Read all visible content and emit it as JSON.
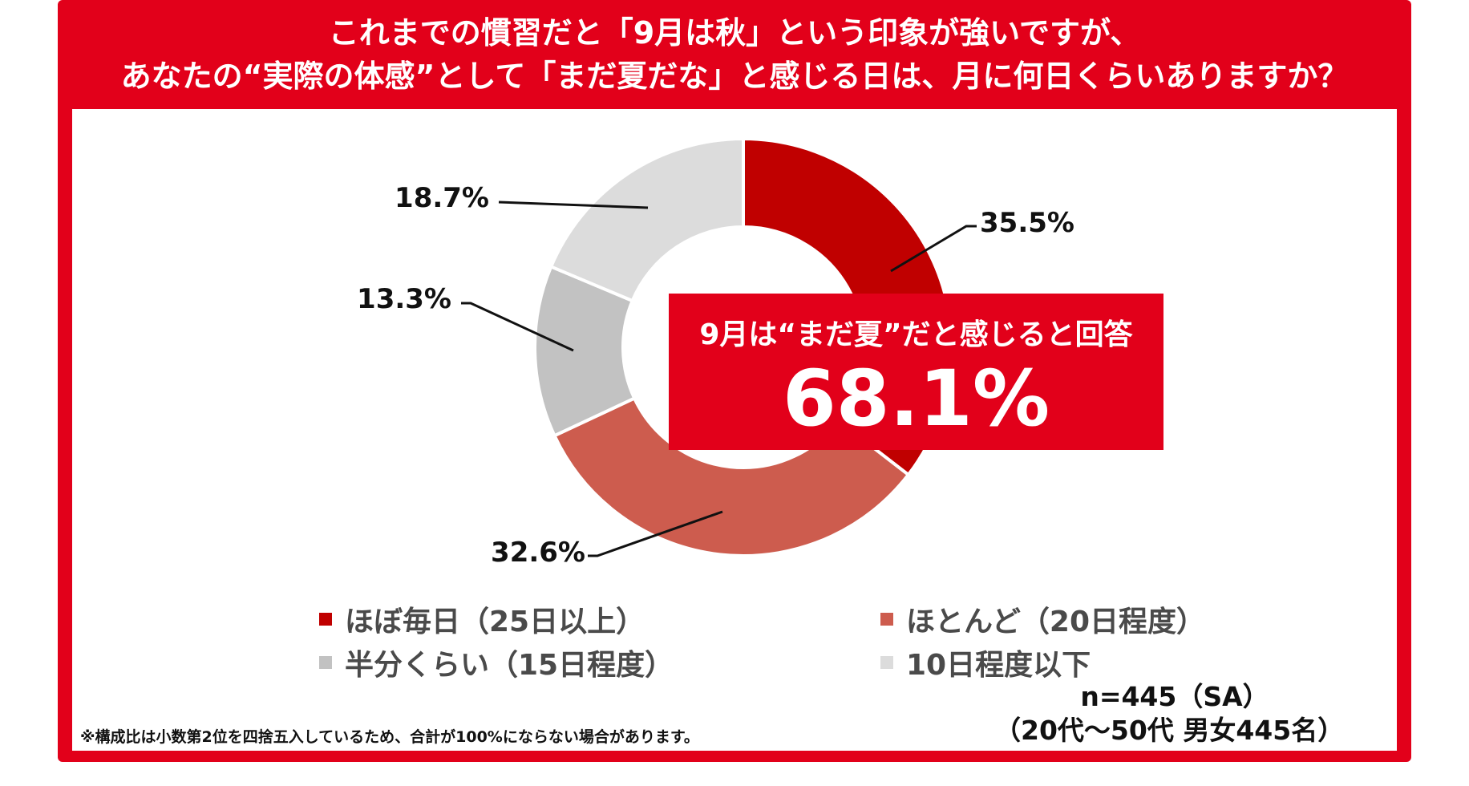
{
  "title": {
    "line1": "これまでの慣習だと「9月は秋」という印象が強いですが、",
    "line2": "あなたの“実際の体感”として「まだ夏だな」と感じる日は、月に何日くらいありますか？"
  },
  "callout": {
    "label": "9月は“まだ夏”だと感じると回答",
    "value": "68.1%"
  },
  "chart_data": {
    "type": "pie",
    "style": "donut",
    "categories": [
      "ほぼ毎日（25日以上）",
      "ほとんど（20日程度）",
      "半分くらい（15日程度）",
      "10日程度以下"
    ],
    "values": [
      35.5,
      32.6,
      13.3,
      18.7
    ],
    "labels": [
      "35.5%",
      "32.6%",
      "13.3%",
      "18.7%"
    ],
    "colors": [
      "#c00000",
      "#cd5c4e",
      "#c2c2c2",
      "#dcdcdc"
    ],
    "legend": "bottom"
  },
  "sample": {
    "line1": "n=445（SA）",
    "line2": "（20代～50代 男女445名）"
  },
  "note": "※構成比は小数第2位を四捨五入しているため、合計が100%にならない場合があります。"
}
